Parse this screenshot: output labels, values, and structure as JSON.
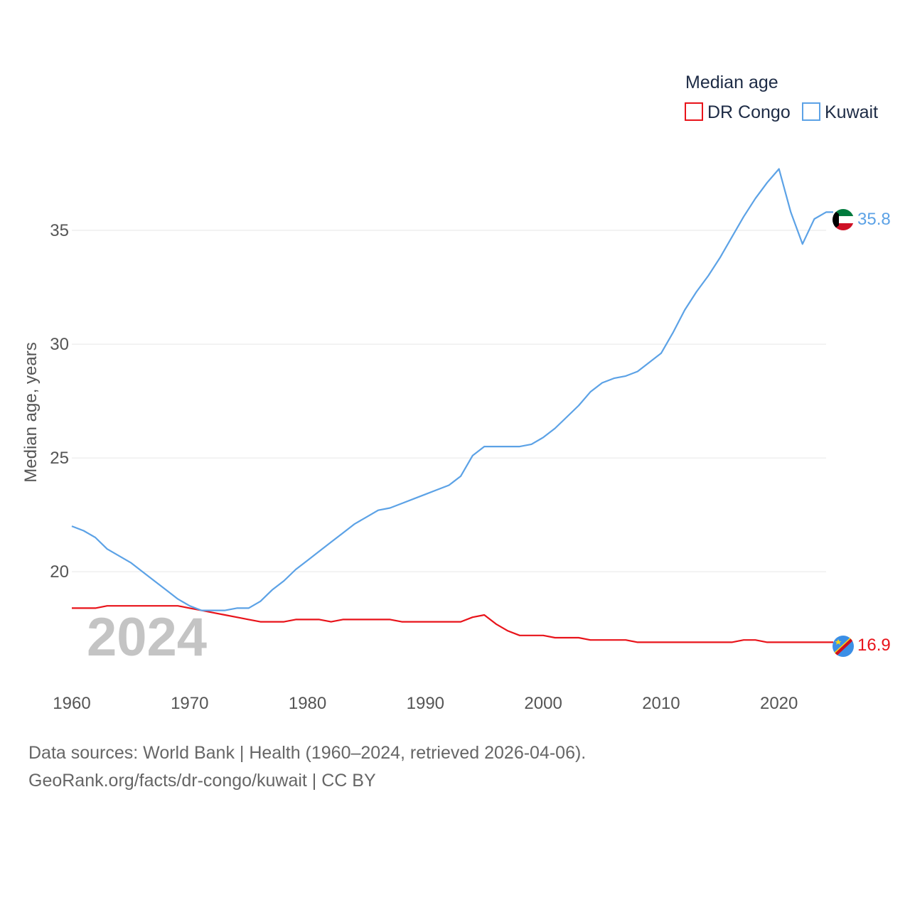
{
  "chart_data": {
    "type": "line",
    "title": "",
    "ylabel": "Median age, years",
    "xlabel": "",
    "xlim": [
      1960,
      2024
    ],
    "ylim": [
      15.6,
      38.0
    ],
    "yticks": [
      20,
      25,
      30,
      35
    ],
    "xticks": [
      1960,
      1970,
      1980,
      1990,
      2000,
      2010,
      2020
    ],
    "legend": {
      "title": "Median age",
      "position": "top-right"
    },
    "year_label": "2024",
    "x": [
      1960,
      1961,
      1962,
      1963,
      1964,
      1965,
      1966,
      1967,
      1968,
      1969,
      1970,
      1971,
      1972,
      1973,
      1974,
      1975,
      1976,
      1977,
      1978,
      1979,
      1980,
      1981,
      1982,
      1983,
      1984,
      1985,
      1986,
      1987,
      1988,
      1989,
      1990,
      1991,
      1992,
      1993,
      1994,
      1995,
      1996,
      1997,
      1998,
      1999,
      2000,
      2001,
      2002,
      2003,
      2004,
      2005,
      2006,
      2007,
      2008,
      2009,
      2010,
      2011,
      2012,
      2013,
      2014,
      2015,
      2016,
      2017,
      2018,
      2019,
      2020,
      2021,
      2022,
      2023,
      2024
    ],
    "series": [
      {
        "name": "DR Congo",
        "color": "#e8131a",
        "end_label": "16.9",
        "values": [
          18.4,
          18.4,
          18.4,
          18.5,
          18.5,
          18.5,
          18.5,
          18.5,
          18.5,
          18.5,
          18.4,
          18.3,
          18.2,
          18.1,
          18.0,
          17.9,
          17.8,
          17.8,
          17.8,
          17.9,
          17.9,
          17.9,
          17.8,
          17.9,
          17.9,
          17.9,
          17.9,
          17.9,
          17.8,
          17.8,
          17.8,
          17.8,
          17.8,
          17.8,
          18.0,
          18.1,
          17.7,
          17.4,
          17.2,
          17.2,
          17.2,
          17.1,
          17.1,
          17.1,
          17.0,
          17.0,
          17.0,
          17.0,
          16.9,
          16.9,
          16.9,
          16.9,
          16.9,
          16.9,
          16.9,
          16.9,
          16.9,
          17.0,
          17.0,
          16.9,
          16.9,
          16.9,
          16.9,
          16.9,
          16.9
        ]
      },
      {
        "name": "Kuwait",
        "color": "#5ca2e6",
        "end_label": "35.8",
        "values": [
          22.0,
          21.8,
          21.5,
          21.0,
          20.7,
          20.4,
          20.0,
          19.6,
          19.2,
          18.8,
          18.5,
          18.3,
          18.3,
          18.3,
          18.4,
          18.4,
          18.7,
          19.2,
          19.6,
          20.1,
          20.5,
          20.9,
          21.3,
          21.7,
          22.1,
          22.4,
          22.7,
          22.8,
          23.0,
          23.2,
          23.4,
          23.6,
          23.8,
          24.2,
          25.1,
          25.5,
          25.5,
          25.5,
          25.5,
          25.6,
          25.9,
          26.3,
          26.8,
          27.3,
          27.9,
          28.3,
          28.5,
          28.6,
          28.8,
          29.2,
          29.6,
          30.5,
          31.5,
          32.3,
          33.0,
          33.8,
          34.7,
          35.6,
          36.4,
          37.1,
          37.7,
          35.8,
          34.4,
          35.5,
          35.8
        ]
      }
    ]
  },
  "footer": {
    "line1": "Data sources: World Bank | Health (1960–2024, retrieved 2026-04-06).",
    "line2": "GeoRank.org/facts/dr-congo/kuwait | CC BY"
  }
}
